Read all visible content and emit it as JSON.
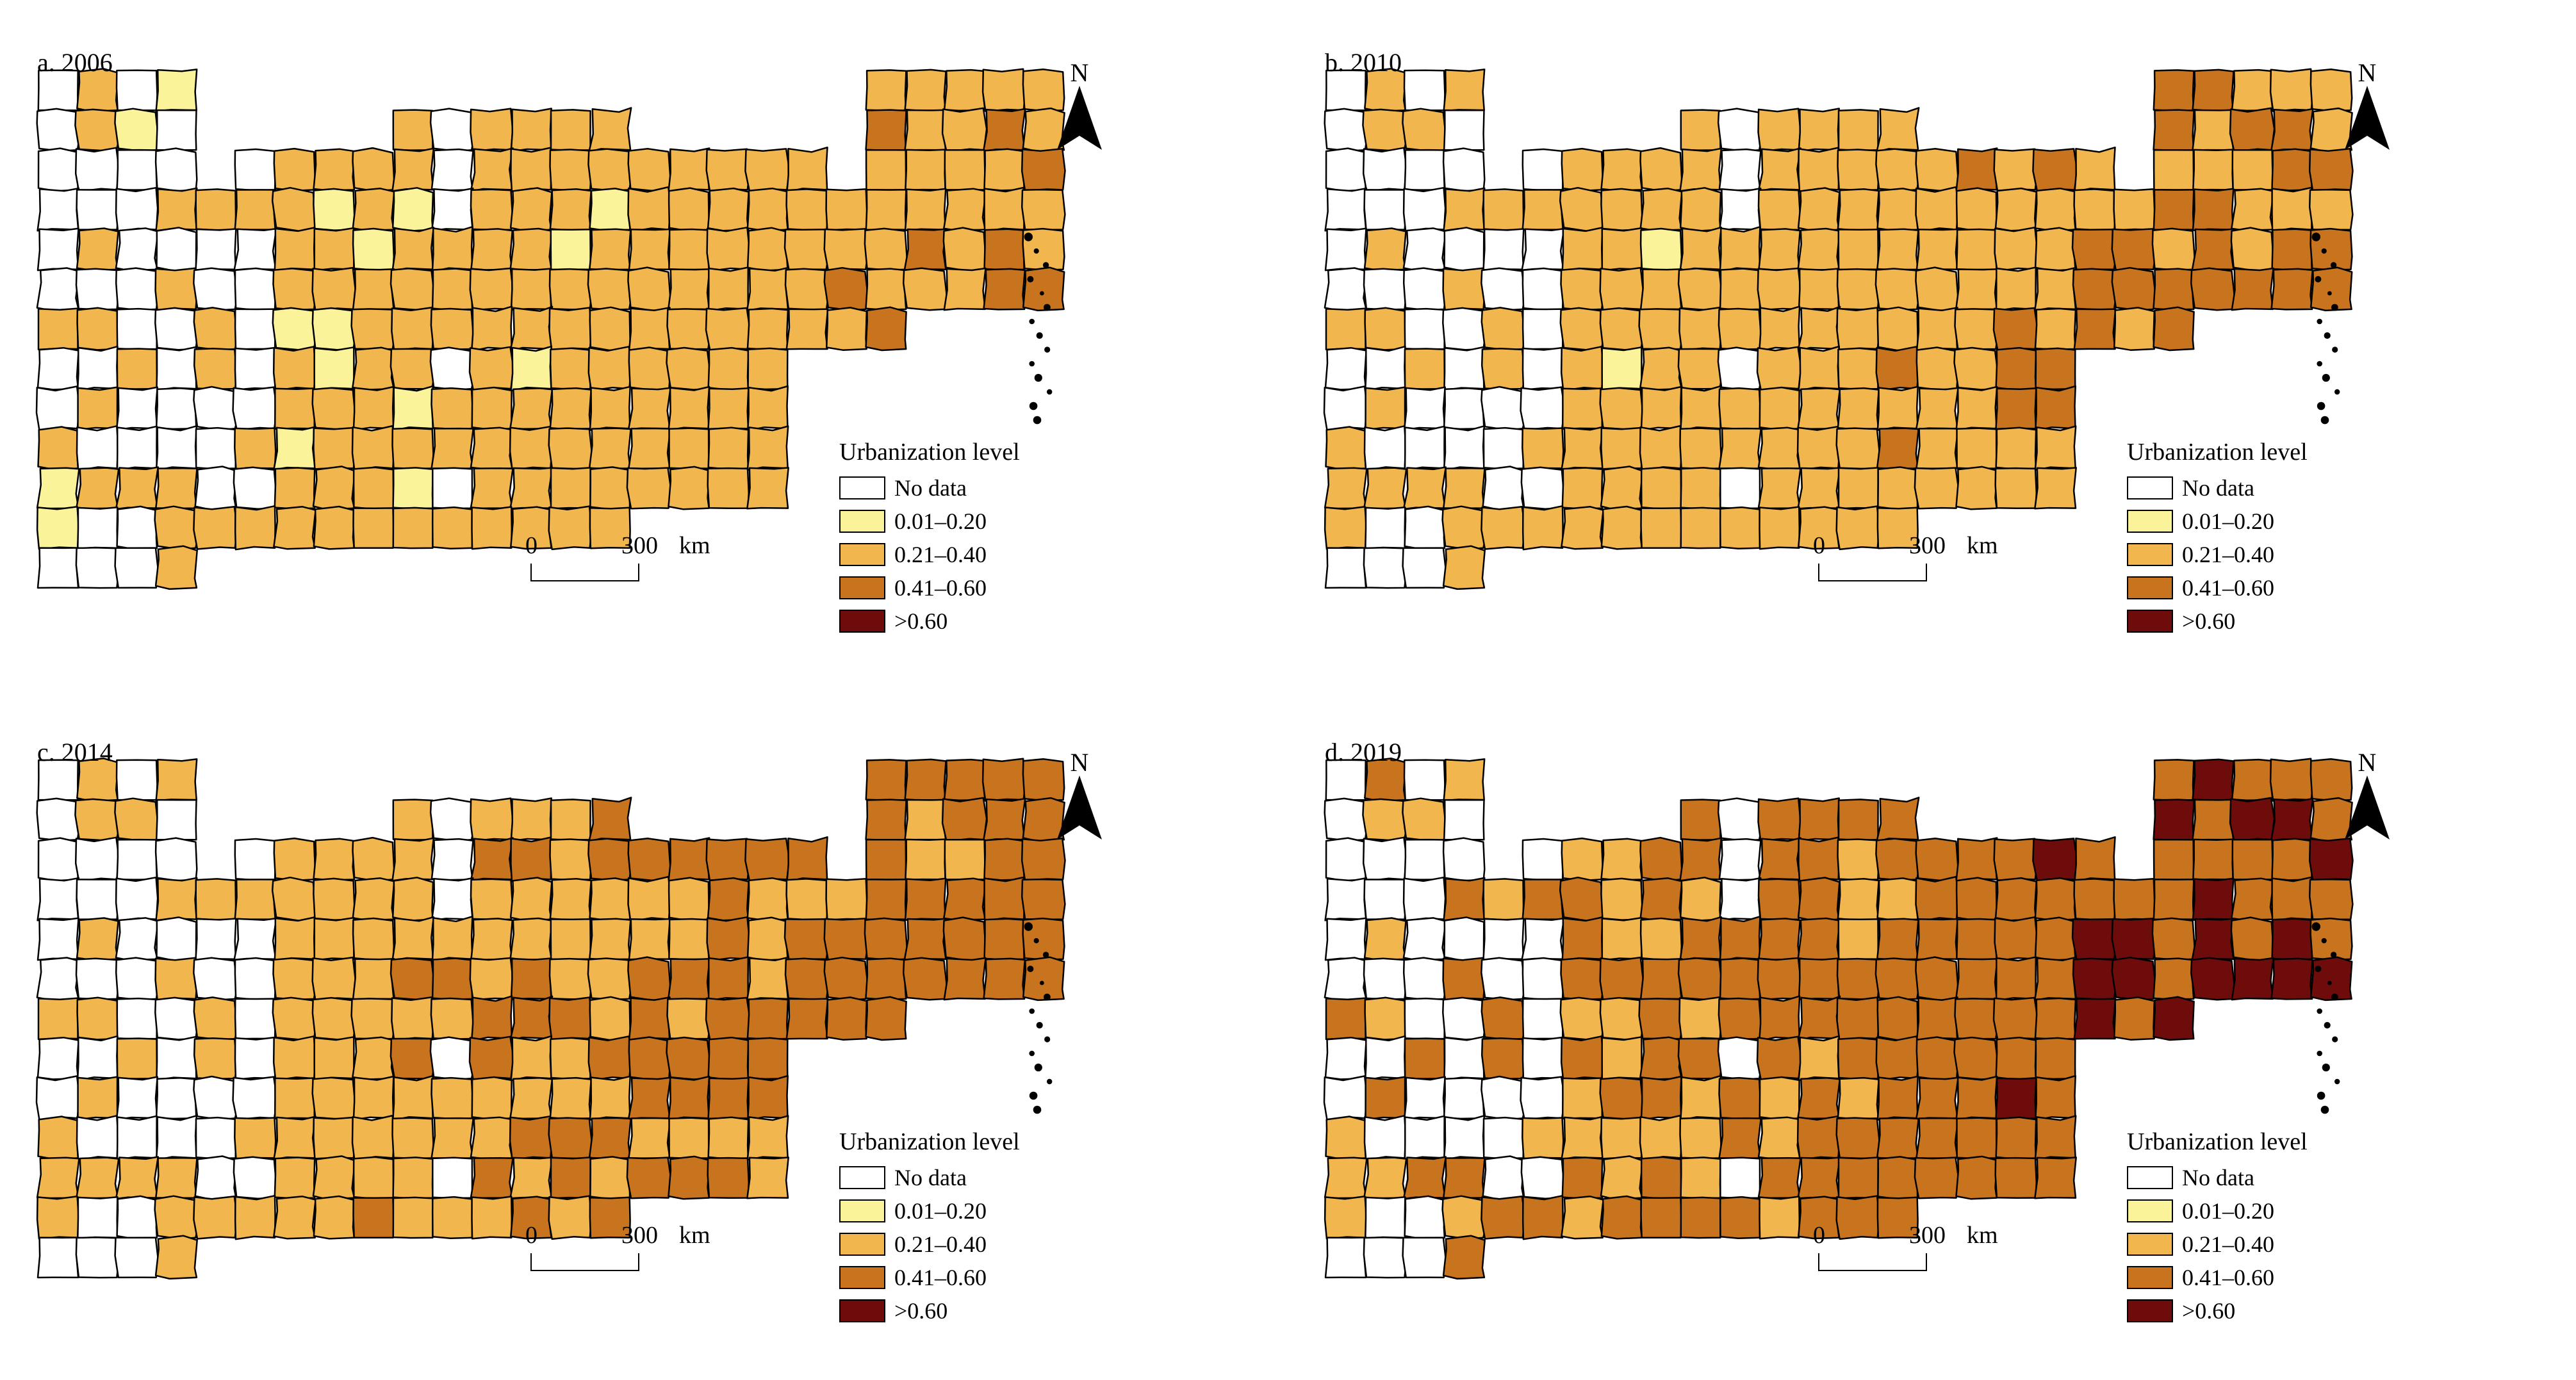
{
  "legend": {
    "title": "Urbanization level",
    "classes": [
      {
        "label": "No data",
        "color": "#ffffff"
      },
      {
        "label": "0.01–0.20",
        "color": "#fbf39a"
      },
      {
        "label": "0.21–0.40",
        "color": "#f2b64f"
      },
      {
        "label": "0.41–0.60",
        "color": "#c8741f"
      },
      {
        "label": ">0.60",
        "color": "#6e0c0c"
      }
    ]
  },
  "north_label": "N",
  "scale": {
    "start": "0",
    "end": "300",
    "unit": "km"
  },
  "panels": [
    {
      "label": "a. 2006",
      "year": 2006
    },
    {
      "label": "b. 2010",
      "year": 2010
    },
    {
      "label": "c. 2014",
      "year": 2014
    },
    {
      "label": "d. 2019",
      "year": 2019
    }
  ]
}
